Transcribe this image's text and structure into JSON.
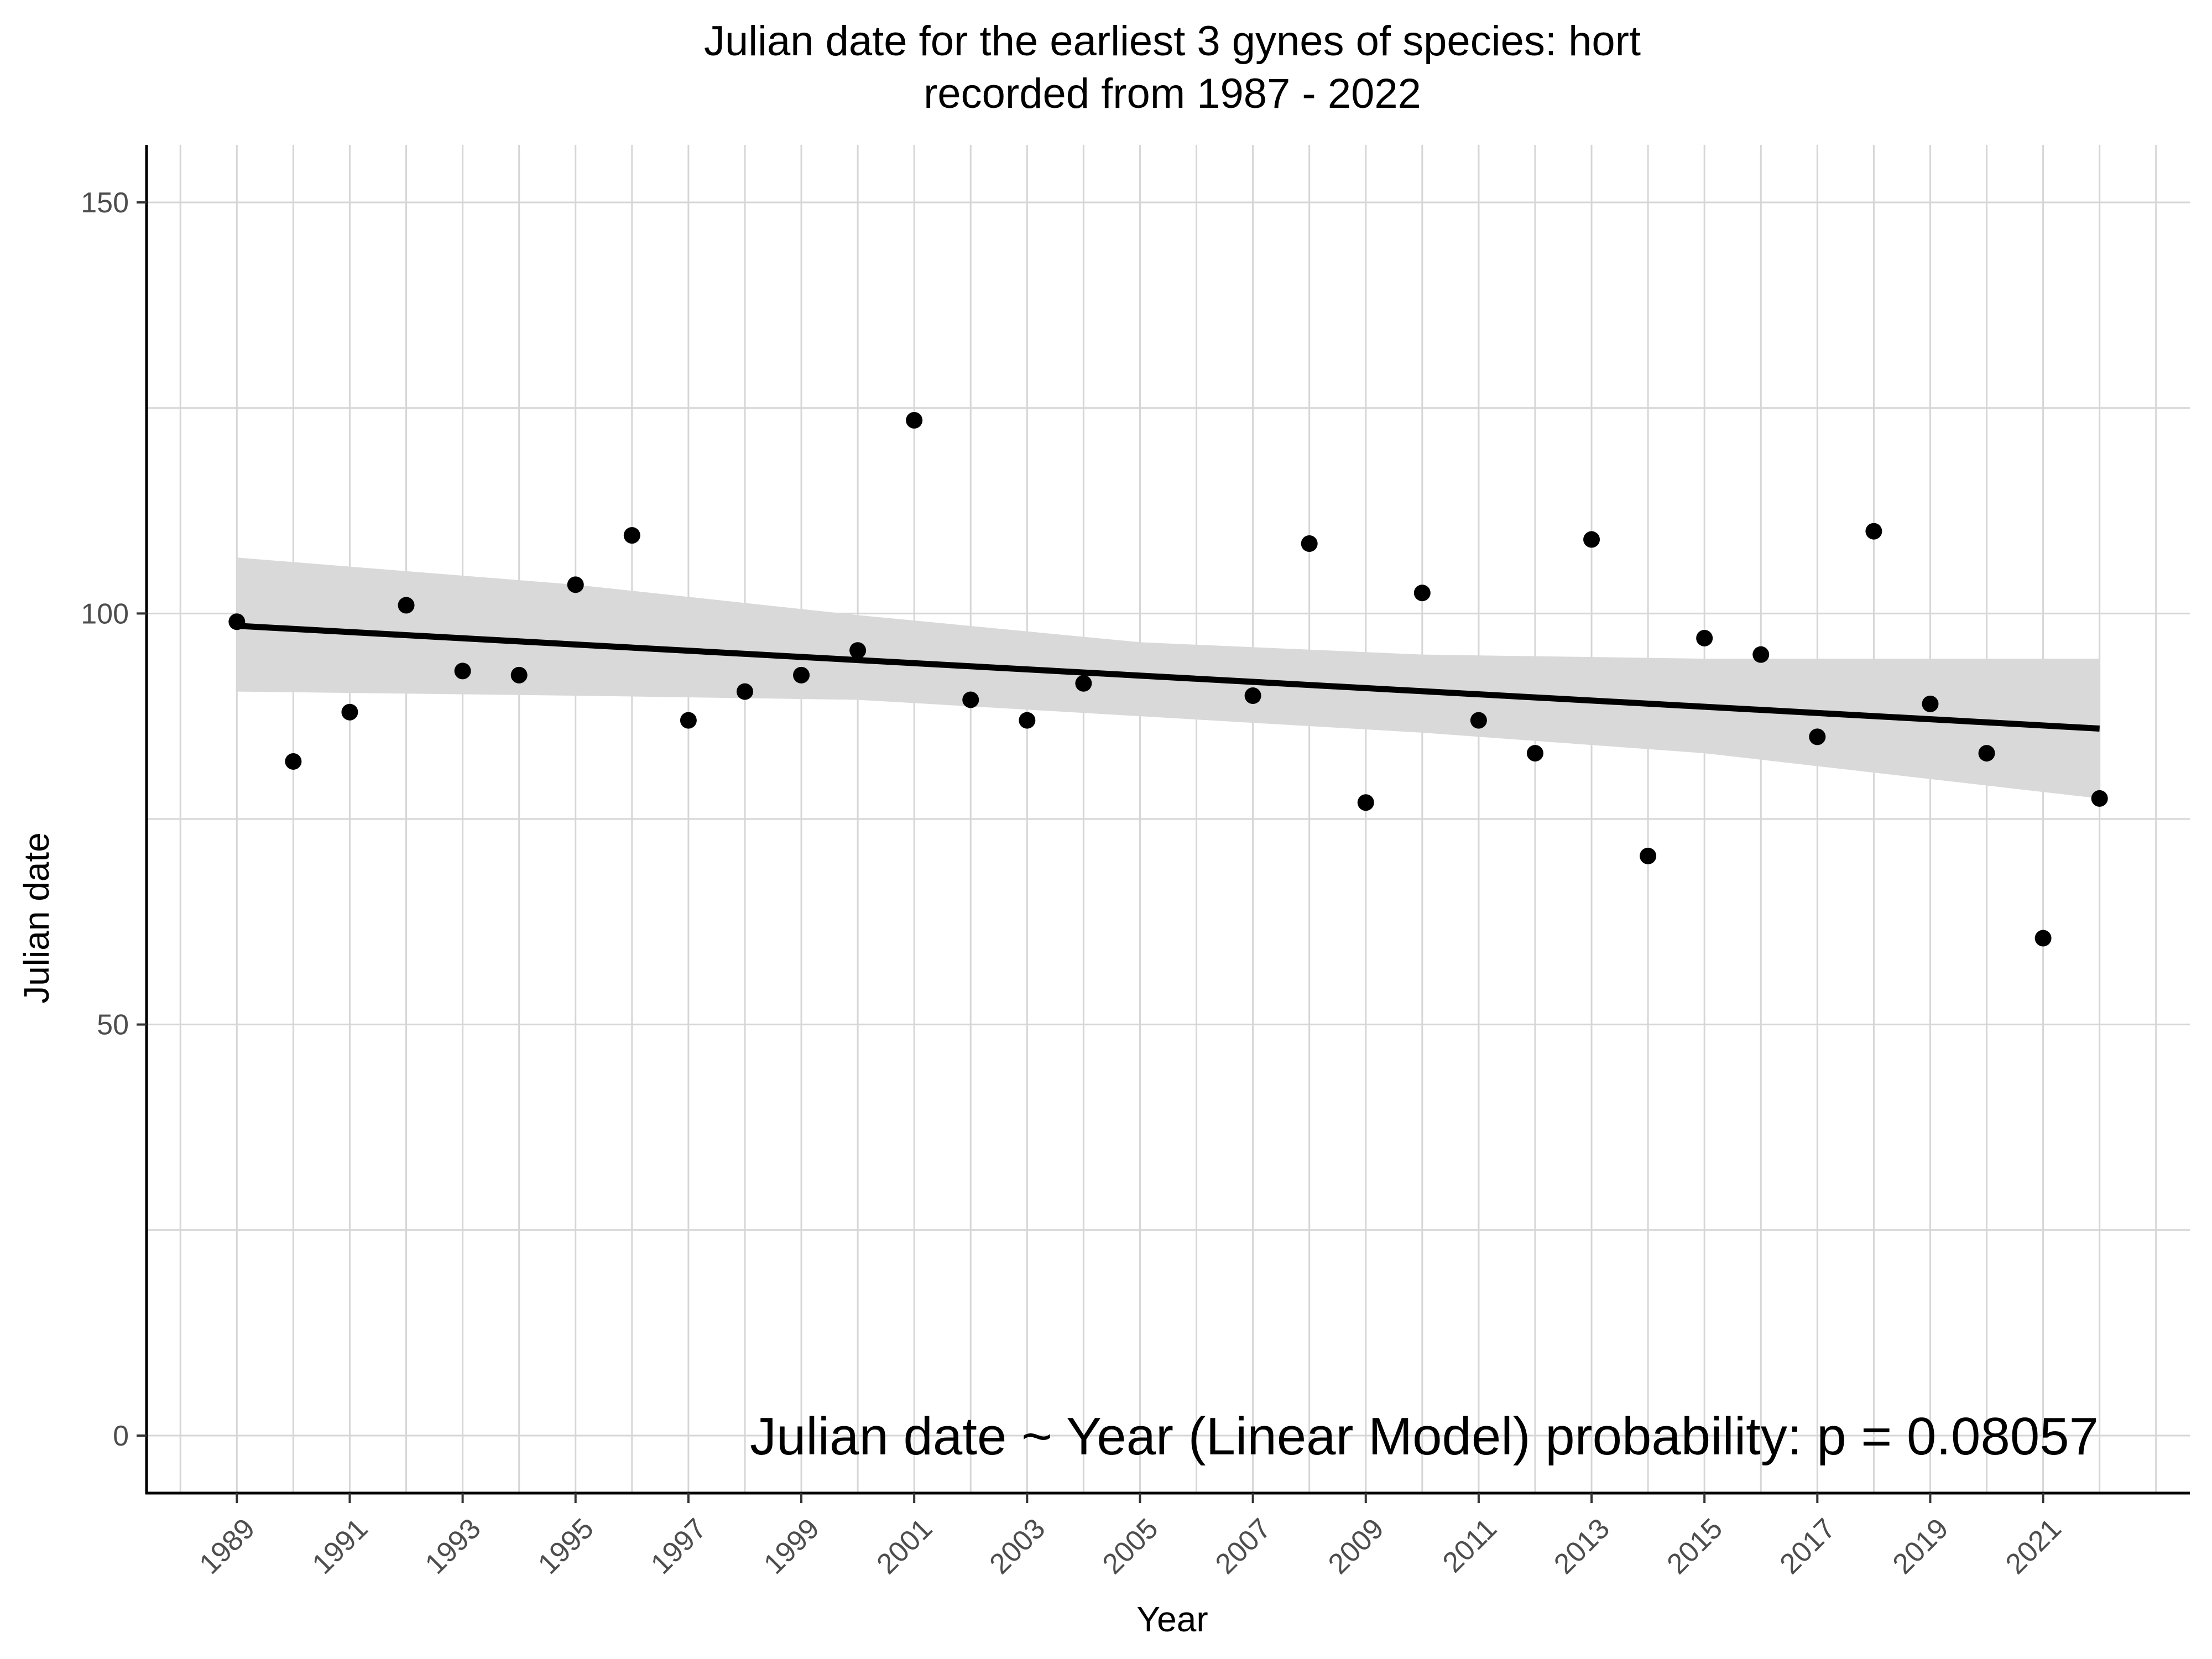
{
  "chart_data": {
    "type": "scatter",
    "title_line1": "Julian date for the earliest 3 gynes of species: hort",
    "title_line2": "recorded from 1987 - 2022",
    "xlabel": "Year",
    "ylabel": "Julian date",
    "annotation": "Julian date ~ Year (Linear Model) probability: p = 0.08057",
    "xlim": [
      1987.4,
      2023.6
    ],
    "ylim": [
      -7,
      157
    ],
    "y_ticks": [
      0,
      50,
      100,
      150
    ],
    "y_minor_gridlines": [
      25,
      75,
      125
    ],
    "x_ticks": [
      1989,
      1991,
      1993,
      1995,
      1997,
      1999,
      2001,
      2003,
      2005,
      2007,
      2009,
      2011,
      2013,
      2015,
      2017,
      2019,
      2021
    ],
    "x_minor_gridlines": [
      1988,
      1990,
      1992,
      1994,
      1996,
      1998,
      2000,
      2002,
      2004,
      2006,
      2008,
      2010,
      2012,
      2014,
      2016,
      2018,
      2020,
      2022,
      2023
    ],
    "grid": true,
    "point_color": "#000000",
    "ribbon_color": "#d9d9d9",
    "line_color": "#000000",
    "points": [
      {
        "x": 1989,
        "y": 99
      },
      {
        "x": 1990,
        "y": 82
      },
      {
        "x": 1991,
        "y": 88
      },
      {
        "x": 1992,
        "y": 101
      },
      {
        "x": 1993,
        "y": 93
      },
      {
        "x": 1994,
        "y": 92.5
      },
      {
        "x": 1995,
        "y": 103.5
      },
      {
        "x": 1996,
        "y": 109.5
      },
      {
        "x": 1997,
        "y": 87
      },
      {
        "x": 1998,
        "y": 90.5
      },
      {
        "x": 1999,
        "y": 92.5
      },
      {
        "x": 2000,
        "y": 95.5
      },
      {
        "x": 2001,
        "y": 123.5
      },
      {
        "x": 2002,
        "y": 89.5
      },
      {
        "x": 2003,
        "y": 87
      },
      {
        "x": 2004,
        "y": 91.5
      },
      {
        "x": 2007,
        "y": 90
      },
      {
        "x": 2008,
        "y": 108.5
      },
      {
        "x": 2009,
        "y": 77
      },
      {
        "x": 2010,
        "y": 102.5
      },
      {
        "x": 2011,
        "y": 87
      },
      {
        "x": 2012,
        "y": 83
      },
      {
        "x": 2013,
        "y": 109
      },
      {
        "x": 2014,
        "y": 70.5
      },
      {
        "x": 2015,
        "y": 97
      },
      {
        "x": 2016,
        "y": 95
      },
      {
        "x": 2017,
        "y": 85
      },
      {
        "x": 2018,
        "y": 110
      },
      {
        "x": 2019,
        "y": 89
      },
      {
        "x": 2020,
        "y": 83
      },
      {
        "x": 2021,
        "y": 60.5
      },
      {
        "x": 2022,
        "y": 77.5
      }
    ],
    "fit_line": [
      {
        "x": 1989,
        "y": 98.5
      },
      {
        "x": 2022,
        "y": 86
      }
    ],
    "confidence_band": [
      {
        "x": 1989,
        "lower": 90.5,
        "upper": 106.8
      },
      {
        "x": 1995,
        "lower": 90,
        "upper": 103.5
      },
      {
        "x": 2000,
        "lower": 89.5,
        "upper": 99.8
      },
      {
        "x": 2005,
        "lower": 87.5,
        "upper": 96.5
      },
      {
        "x": 2010,
        "lower": 85.5,
        "upper": 95
      },
      {
        "x": 2015,
        "lower": 83,
        "upper": 94.5
      },
      {
        "x": 2022,
        "lower": 77.5,
        "upper": 94.5
      }
    ]
  }
}
